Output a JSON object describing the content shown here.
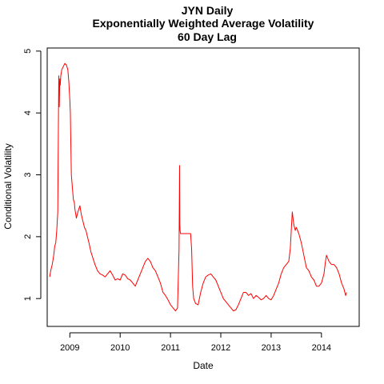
{
  "chart_data": {
    "type": "line",
    "title": "JYN Daily",
    "subtitle": "Exponentially Weighted Average Volatility",
    "subtitle2": "60 Day Lag",
    "xlabel": "Date",
    "ylabel": "Conditional Volatility",
    "xlim": [
      2008.55,
      2014.75
    ],
    "ylim": [
      0.55,
      5.05
    ],
    "x_ticks": [
      2009,
      2010,
      2011,
      2012,
      2013,
      2014
    ],
    "x_tick_labels": [
      "2009",
      "2010",
      "2011",
      "2012",
      "2013",
      "2014"
    ],
    "y_ticks": [
      1,
      2,
      3,
      4,
      5
    ],
    "y_tick_labels": [
      "1",
      "2",
      "3",
      "4",
      "5"
    ],
    "grid": false,
    "colors": {
      "line": "#ff0000",
      "axis": "#000000"
    },
    "series": [
      {
        "x": [
          2008.6,
          2008.62,
          2008.65,
          2008.68,
          2008.7,
          2008.72,
          2008.74,
          2008.76,
          2008.77,
          2008.78,
          2008.79,
          2008.8,
          2008.81,
          2008.82,
          2008.84,
          2008.87,
          2008.9,
          2008.93,
          2008.96,
          2008.98,
          2009.0,
          2009.01,
          2009.02,
          2009.03,
          2009.05,
          2009.07,
          2009.09,
          2009.1,
          2009.13,
          2009.16,
          2009.2,
          2009.23,
          2009.26,
          2009.29,
          2009.32,
          2009.35,
          2009.38,
          2009.42,
          2009.46,
          2009.5,
          2009.55,
          2009.6,
          2009.65,
          2009.7,
          2009.75,
          2009.8,
          2009.85,
          2009.9,
          2009.95,
          2010.0,
          2010.05,
          2010.1,
          2010.15,
          2010.2,
          2010.25,
          2010.3,
          2010.35,
          2010.4,
          2010.45,
          2010.5,
          2010.55,
          2010.6,
          2010.65,
          2010.7,
          2010.75,
          2010.8,
          2010.85,
          2010.9,
          2010.95,
          2011.0,
          2011.05,
          2011.1,
          2011.14,
          2011.17,
          2011.18,
          2011.185,
          2011.19,
          2011.2,
          2011.22,
          2011.25,
          2011.3,
          2011.35,
          2011.4,
          2011.42,
          2011.44,
          2011.46,
          2011.5,
          2011.55,
          2011.6,
          2011.65,
          2011.7,
          2011.75,
          2011.8,
          2011.85,
          2011.9,
          2011.95,
          2012.0,
          2012.05,
          2012.1,
          2012.15,
          2012.2,
          2012.25,
          2012.3,
          2012.35,
          2012.4,
          2012.45,
          2012.5,
          2012.55,
          2012.6,
          2012.65,
          2012.7,
          2012.75,
          2012.8,
          2012.85,
          2012.9,
          2012.95,
          2013.0,
          2013.05,
          2013.1,
          2013.15,
          2013.2,
          2013.25,
          2013.3,
          2013.35,
          2013.38,
          2013.4,
          2013.42,
          2013.45,
          2013.48,
          2013.5,
          2013.55,
          2013.6,
          2013.65,
          2013.7,
          2013.75,
          2013.8,
          2013.85,
          2013.9,
          2013.95,
          2014.0,
          2014.05,
          2014.08,
          2014.1,
          2014.15,
          2014.2,
          2014.25,
          2014.3,
          2014.35,
          2014.4,
          2014.45,
          2014.48,
          2014.5
        ],
        "values": [
          1.35,
          1.45,
          1.55,
          1.7,
          1.85,
          1.9,
          2.1,
          2.4,
          3.5,
          4.6,
          4.1,
          4.55,
          4.45,
          4.6,
          4.7,
          4.75,
          4.8,
          4.78,
          4.7,
          4.5,
          4.2,
          4.0,
          3.5,
          3.0,
          2.8,
          2.6,
          2.55,
          2.45,
          2.3,
          2.4,
          2.5,
          2.35,
          2.25,
          2.15,
          2.1,
          2.0,
          1.9,
          1.75,
          1.65,
          1.55,
          1.45,
          1.4,
          1.38,
          1.35,
          1.4,
          1.45,
          1.38,
          1.3,
          1.32,
          1.3,
          1.4,
          1.38,
          1.32,
          1.3,
          1.25,
          1.2,
          1.3,
          1.4,
          1.5,
          1.6,
          1.65,
          1.6,
          1.5,
          1.45,
          1.35,
          1.25,
          1.1,
          1.05,
          0.98,
          0.9,
          0.85,
          0.8,
          0.85,
          1.8,
          3.15,
          2.2,
          2.1,
          2.05,
          2.05,
          2.05,
          2.05,
          2.05,
          2.05,
          1.8,
          1.2,
          1.0,
          0.92,
          0.9,
          1.1,
          1.25,
          1.35,
          1.38,
          1.4,
          1.35,
          1.3,
          1.2,
          1.1,
          1.0,
          0.95,
          0.9,
          0.85,
          0.8,
          0.82,
          0.9,
          1.0,
          1.1,
          1.1,
          1.05,
          1.08,
          1.0,
          1.05,
          1.02,
          0.98,
          1.0,
          1.05,
          1.0,
          0.98,
          1.05,
          1.15,
          1.25,
          1.4,
          1.5,
          1.55,
          1.6,
          1.8,
          2.1,
          2.4,
          2.2,
          2.1,
          2.15,
          2.05,
          1.9,
          1.7,
          1.5,
          1.45,
          1.35,
          1.3,
          1.2,
          1.2,
          1.25,
          1.4,
          1.6,
          1.7,
          1.6,
          1.55,
          1.55,
          1.5,
          1.4,
          1.25,
          1.15,
          1.05,
          1.1
        ]
      }
    ]
  }
}
